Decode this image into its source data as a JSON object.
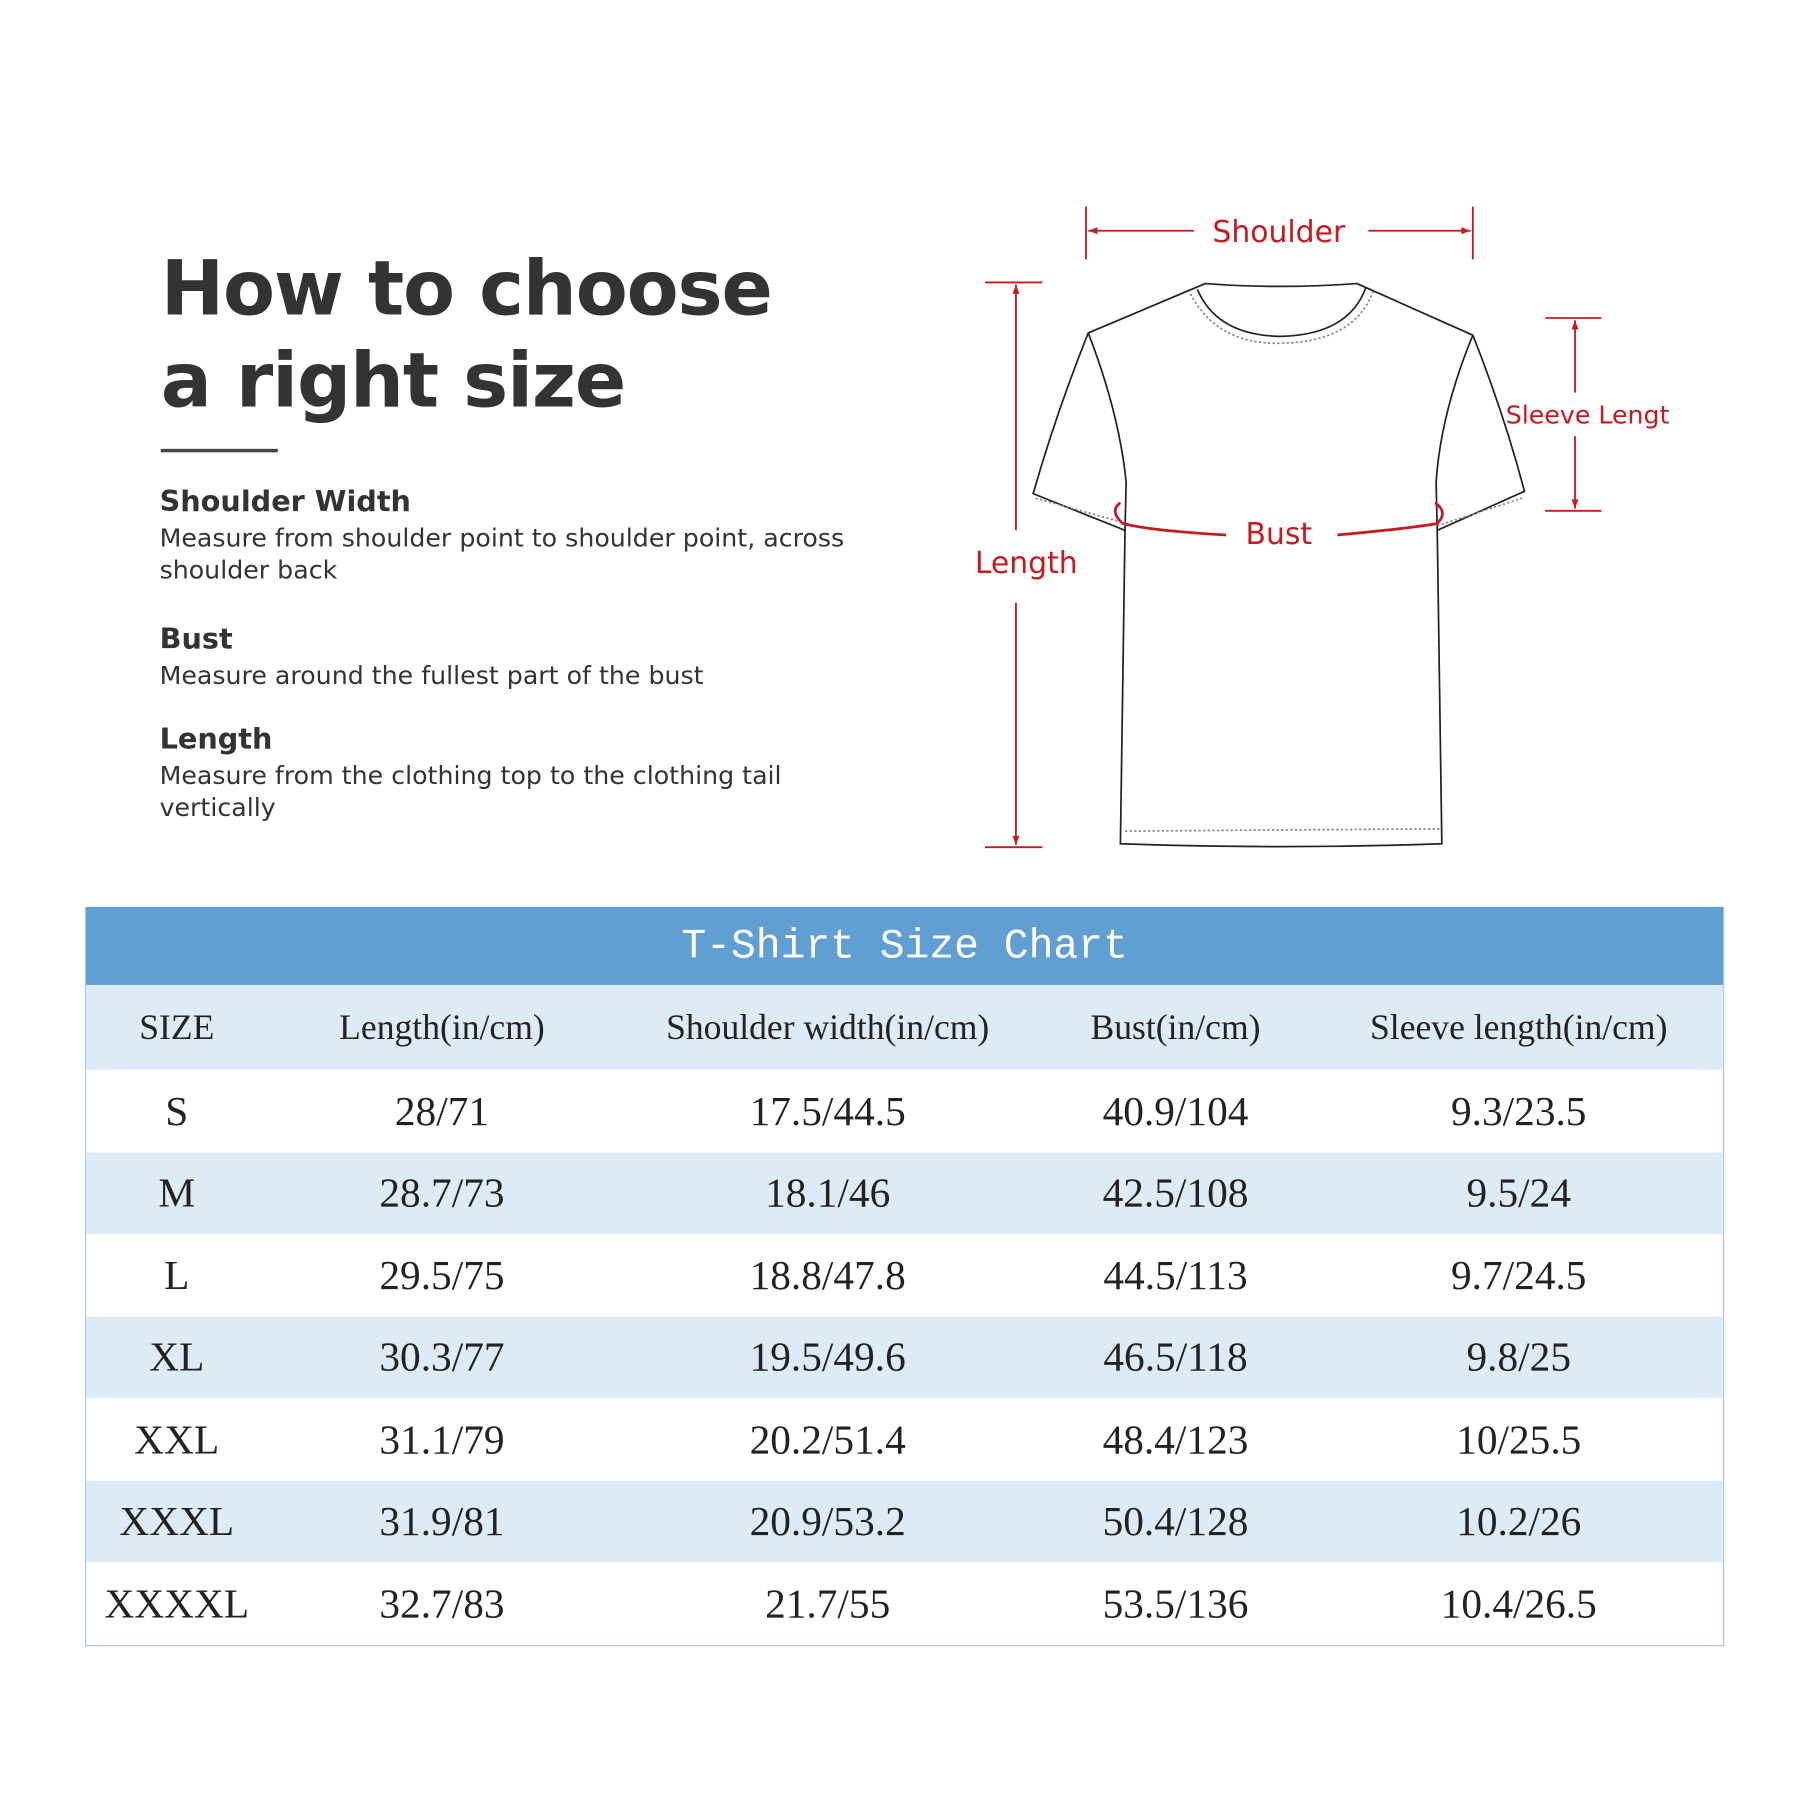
{
  "heading": {
    "line1": "How to choose",
    "line2": "a right size"
  },
  "sections": [
    {
      "title": "Shoulder Width",
      "text": "Measure from shoulder point to shoulder point, across shoulder back"
    },
    {
      "title": "Bust",
      "text": "Measure around the fullest part of the bust"
    },
    {
      "title": "Length",
      "text": "Measure from the clothing top to the clothing tail vertically"
    }
  ],
  "diagram": {
    "shoulder": "Shoulder",
    "sleeve": "Sleeve Lengt",
    "bust": "Bust",
    "length": "Length",
    "accent": "#c8191e"
  },
  "table": {
    "title": "T-Shirt Size Chart",
    "header_color": "#619fd3",
    "columns": [
      "SIZE",
      "Length(in/cm)",
      "Shoulder width(in/cm)",
      "Bust(in/cm)",
      "Sleeve length(in/cm)"
    ],
    "rows": [
      [
        "S",
        "28/71",
        "17.5/44.5",
        "40.9/104",
        "9.3/23.5"
      ],
      [
        "M",
        "28.7/73",
        "18.1/46",
        "42.5/108",
        "9.5/24"
      ],
      [
        "L",
        "29.5/75",
        "18.8/47.8",
        "44.5/113",
        "9.7/24.5"
      ],
      [
        "XL",
        "30.3/77",
        "19.5/49.6",
        "46.5/118",
        "9.8/25"
      ],
      [
        "XXL",
        "31.1/79",
        "20.2/51.4",
        "48.4/123",
        "10/25.5"
      ],
      [
        "XXXL",
        "31.9/81",
        "20.9/53.2",
        "50.4/128",
        "10.2/26"
      ],
      [
        "XXXXL",
        "32.7/83",
        "21.7/55",
        "53.5/136",
        "10.4/26.5"
      ]
    ]
  }
}
